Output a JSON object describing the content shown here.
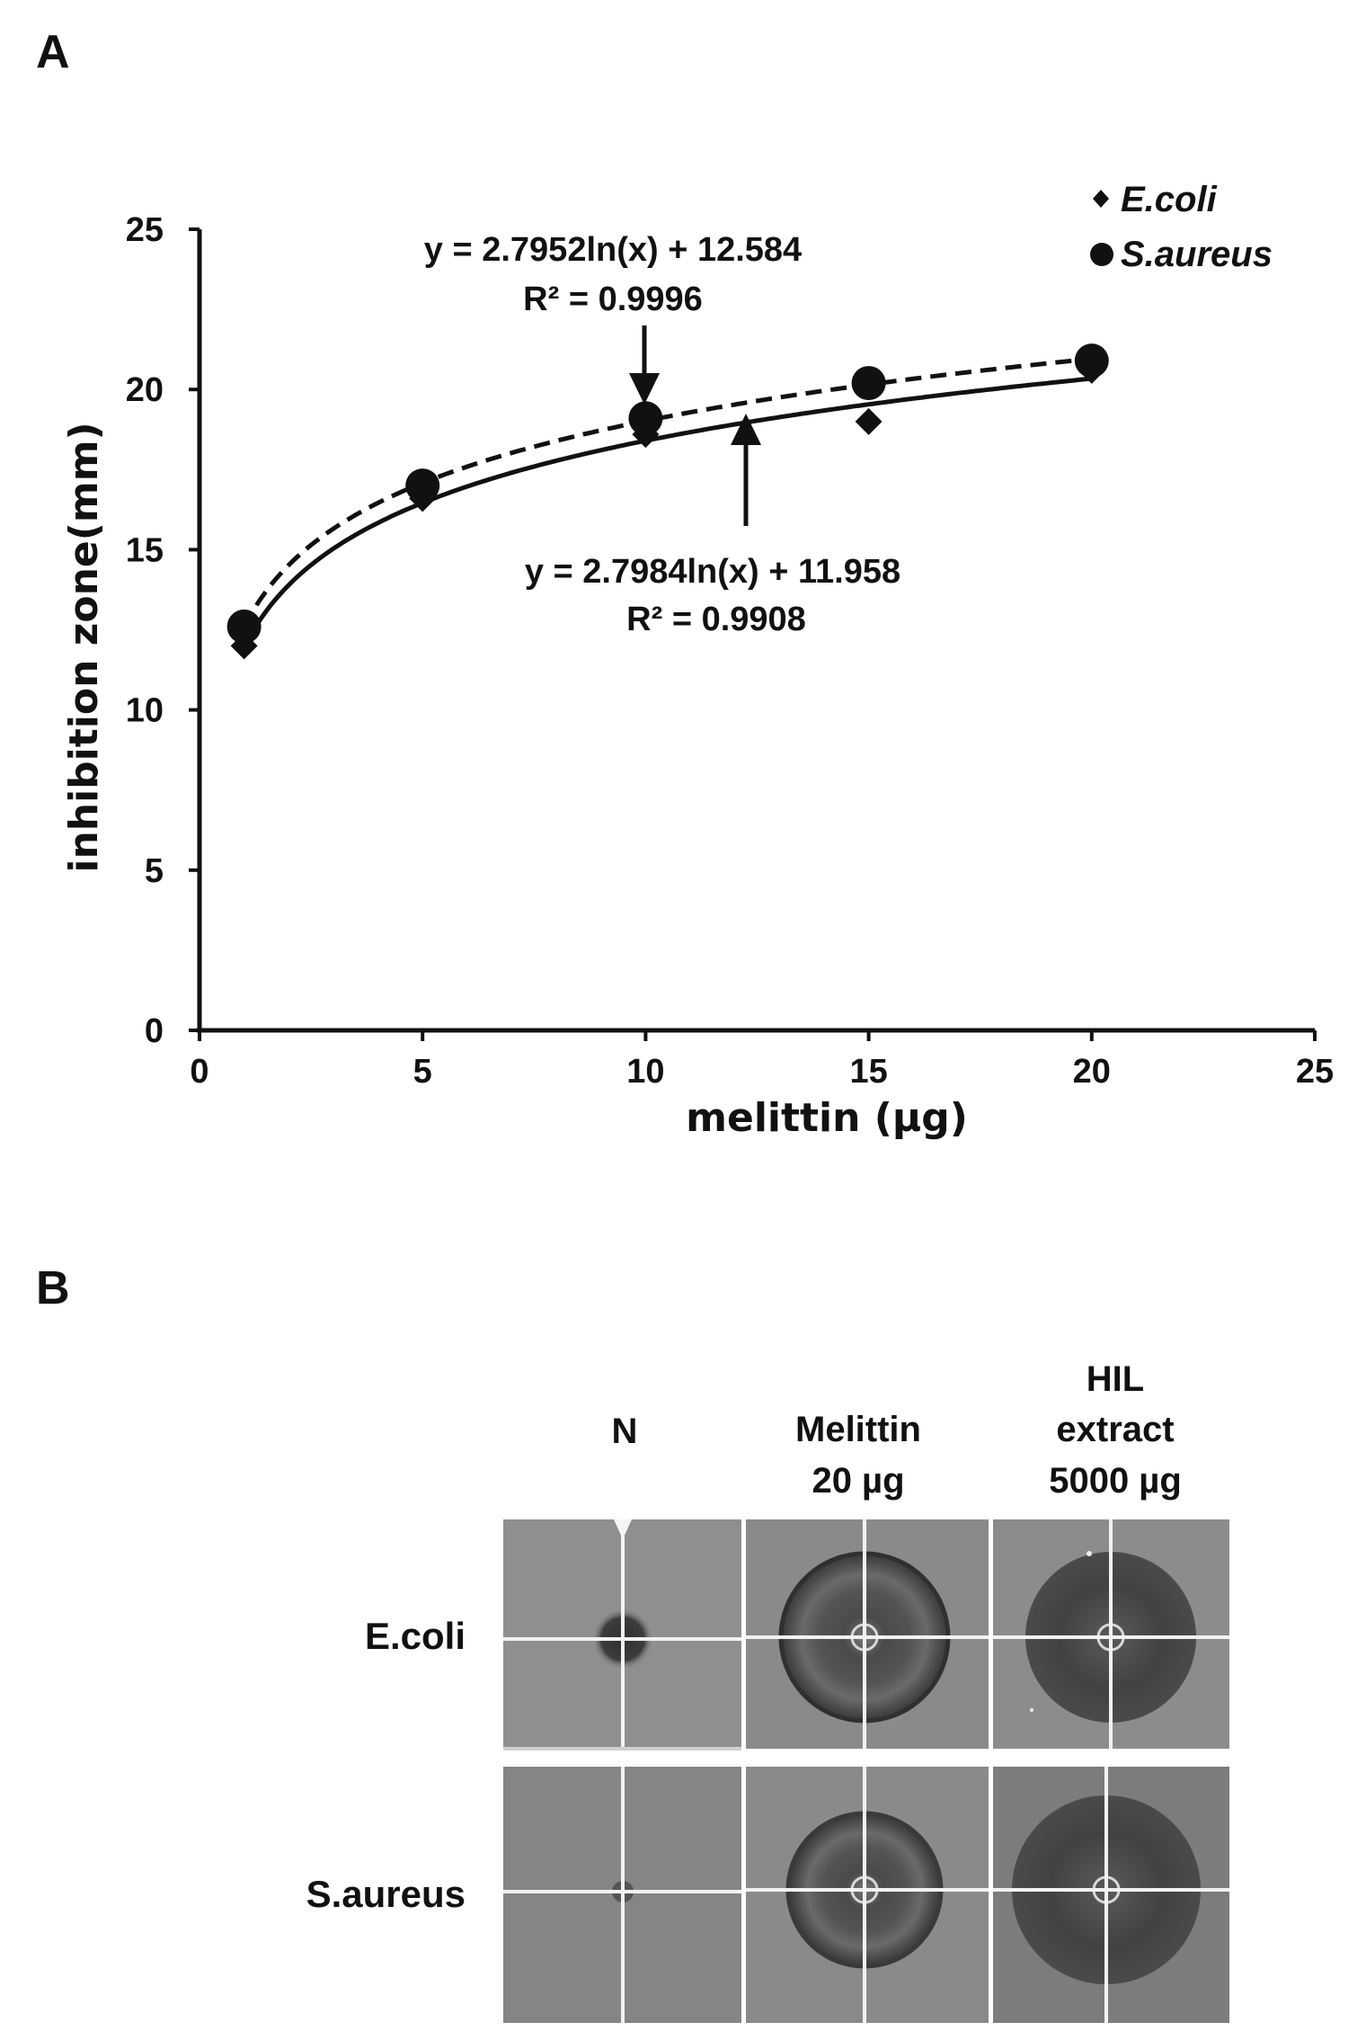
{
  "panel_a": {
    "letter": "A"
  },
  "panel_b": {
    "letter": "B",
    "columns": [
      {
        "lines": [
          "N"
        ]
      },
      {
        "lines": [
          "Melittin",
          "20 µg"
        ]
      },
      {
        "lines": [
          "HIL",
          "extract",
          "5000 µg"
        ]
      }
    ],
    "rows": [
      {
        "label": "E.coli"
      },
      {
        "label": "S.aureus"
      }
    ],
    "plates": [
      {
        "row": "E.coli",
        "column": "N",
        "zone_mm": 0,
        "cloudy": false
      },
      {
        "row": "E.coli",
        "column": "Melittin 20 µg",
        "zone_mm": 20.5,
        "cloudy": false
      },
      {
        "row": "E.coli",
        "column": "HIL extract 5000 µg",
        "zone_mm": 21,
        "cloudy": true
      },
      {
        "row": "S.aureus",
        "column": "N",
        "zone_mm": 0,
        "cloudy": false
      },
      {
        "row": "S.aureus",
        "column": "Melittin 20 µg",
        "zone_mm": 21,
        "cloudy": false
      },
      {
        "row": "S.aureus",
        "column": "HIL extract 5000 µg",
        "zone_mm": 24,
        "cloudy": true
      }
    ],
    "colors": {
      "plate_bg_ecoli": "#8e8e8e",
      "plate_bg_saureus": "#7a7a7a",
      "zone_dark": "#3a3a3a",
      "grid_line": "#f2f2f2"
    }
  },
  "chart_data": {
    "type": "scatter",
    "title": "",
    "xlabel": "melittin (µg)",
    "ylabel": "inhibition zone(mm)",
    "xlim": [
      0,
      25
    ],
    "ylim": [
      0,
      25
    ],
    "xticks": [
      0,
      5,
      10,
      15,
      20,
      25
    ],
    "yticks": [
      0,
      5,
      10,
      15,
      20,
      25
    ],
    "legend_position": "top-right",
    "series": [
      {
        "name": "E.coli",
        "marker": "diamond",
        "x": [
          1,
          5,
          10,
          15,
          20
        ],
        "y": [
          12.0,
          16.6,
          18.6,
          19.0,
          20.6
        ],
        "trendline": {
          "type": "log",
          "a": 2.7984,
          "b": 11.958,
          "style": "solid",
          "equation": "y = 2.7984ln(x)  + 11.958",
          "r2_text": "R² = 0.9908"
        }
      },
      {
        "name": "S.aureus",
        "marker": "circle",
        "x": [
          1,
          5,
          10,
          15,
          20
        ],
        "y": [
          12.6,
          17.0,
          19.1,
          20.2,
          20.9
        ],
        "trendline": {
          "type": "log",
          "a": 2.7952,
          "b": 12.584,
          "style": "dashed",
          "equation": "y = 2.7952ln(x)  + 12.584",
          "r2_text": "R² = 0.9996"
        }
      }
    ]
  }
}
